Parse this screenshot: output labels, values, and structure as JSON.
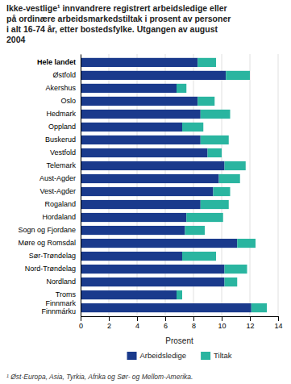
{
  "chart_data": {
    "type": "bar",
    "orientation": "horizontal",
    "stacked": true,
    "title": "Ikke-vestlige¹ innvandrere registrert arbeidsledige eller\npå ordinære arbeidsmarkedstiltak i prosent av personer\ni alt 16-74 år, etter bostedsfylke. Utgangen av august\n2004",
    "footnote": "¹ Øst-Europa, Asia, Tyrkia, Afrika og Sør- og Mellom-Amerika.",
    "xlabel": "Prosent",
    "categories": [
      "Hele landet",
      "Østfold",
      "Akershus",
      "Oslo",
      "Hedmark",
      "Oppland",
      "Buskerud",
      "Vestfold",
      "Telemark",
      "Aust-Agder",
      "Vest-Agder",
      "Rogaland",
      "Hordaland",
      "Sogn og Fjordane",
      "Møre og Romsdal",
      "Sør-Trøndelag",
      "Nord-Trøndelag",
      "Nordland",
      "Troms",
      "Finnmark\nFinnmárku"
    ],
    "series": [
      {
        "name": "Arbeidsledige",
        "color": "#1a3a8c",
        "values": [
          8.3,
          10.3,
          6.8,
          8.3,
          8.5,
          7.2,
          8.5,
          9.0,
          10.2,
          9.8,
          9.4,
          8.5,
          7.5,
          7.4,
          11.1,
          7.2,
          10.2,
          10.2,
          6.8,
          12.1
        ]
      },
      {
        "name": "Tiltak",
        "color": "#2ab5a0",
        "values": [
          1.3,
          1.7,
          0.7,
          1.2,
          2.1,
          1.5,
          2.0,
          1.0,
          1.5,
          1.5,
          1.2,
          2.0,
          2.6,
          1.4,
          1.3,
          2.4,
          1.6,
          0.9,
          0.4,
          1.1
        ]
      }
    ],
    "xlim": [
      0,
      14
    ],
    "xticks": [
      0,
      2,
      4,
      6,
      8,
      10,
      12,
      14
    ],
    "grid": true,
    "legend": "bottom"
  }
}
